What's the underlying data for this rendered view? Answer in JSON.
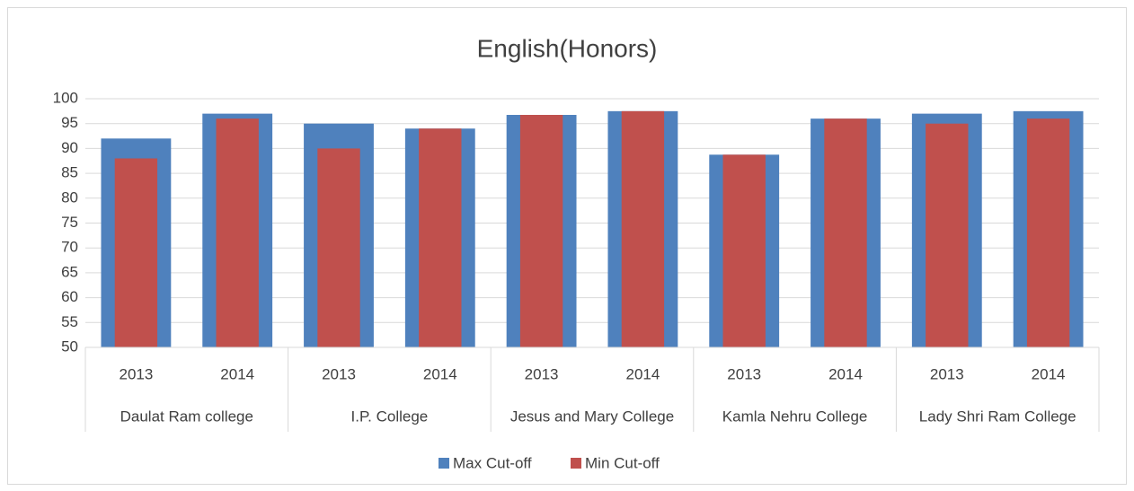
{
  "chart_data": {
    "type": "bar",
    "title": "English(Honors)",
    "categories": [
      "2013",
      "2014",
      "2013",
      "2014",
      "2013",
      "2014",
      "2013",
      "2014",
      "2013",
      "2014"
    ],
    "groups": [
      "Daulat Ram college",
      "I.P. College",
      "Jesus and Mary College",
      "Kamla Nehru College",
      "Lady Shri Ram College"
    ],
    "series": [
      {
        "name": "Max Cut-off",
        "color": "#4f81bd",
        "values": [
          92,
          97,
          95,
          94,
          96.75,
          97.5,
          88.75,
          96,
          97,
          97.5
        ]
      },
      {
        "name": "Min Cut-off",
        "color": "#c0504d",
        "values": [
          88,
          96,
          90,
          94,
          96.75,
          97.5,
          88.75,
          96,
          95,
          96
        ]
      }
    ],
    "ylim": [
      50,
      100
    ],
    "yticks": [
      50,
      55,
      60,
      65,
      70,
      75,
      80,
      85,
      90,
      95,
      100
    ],
    "grid": true,
    "legend": "bottom"
  }
}
